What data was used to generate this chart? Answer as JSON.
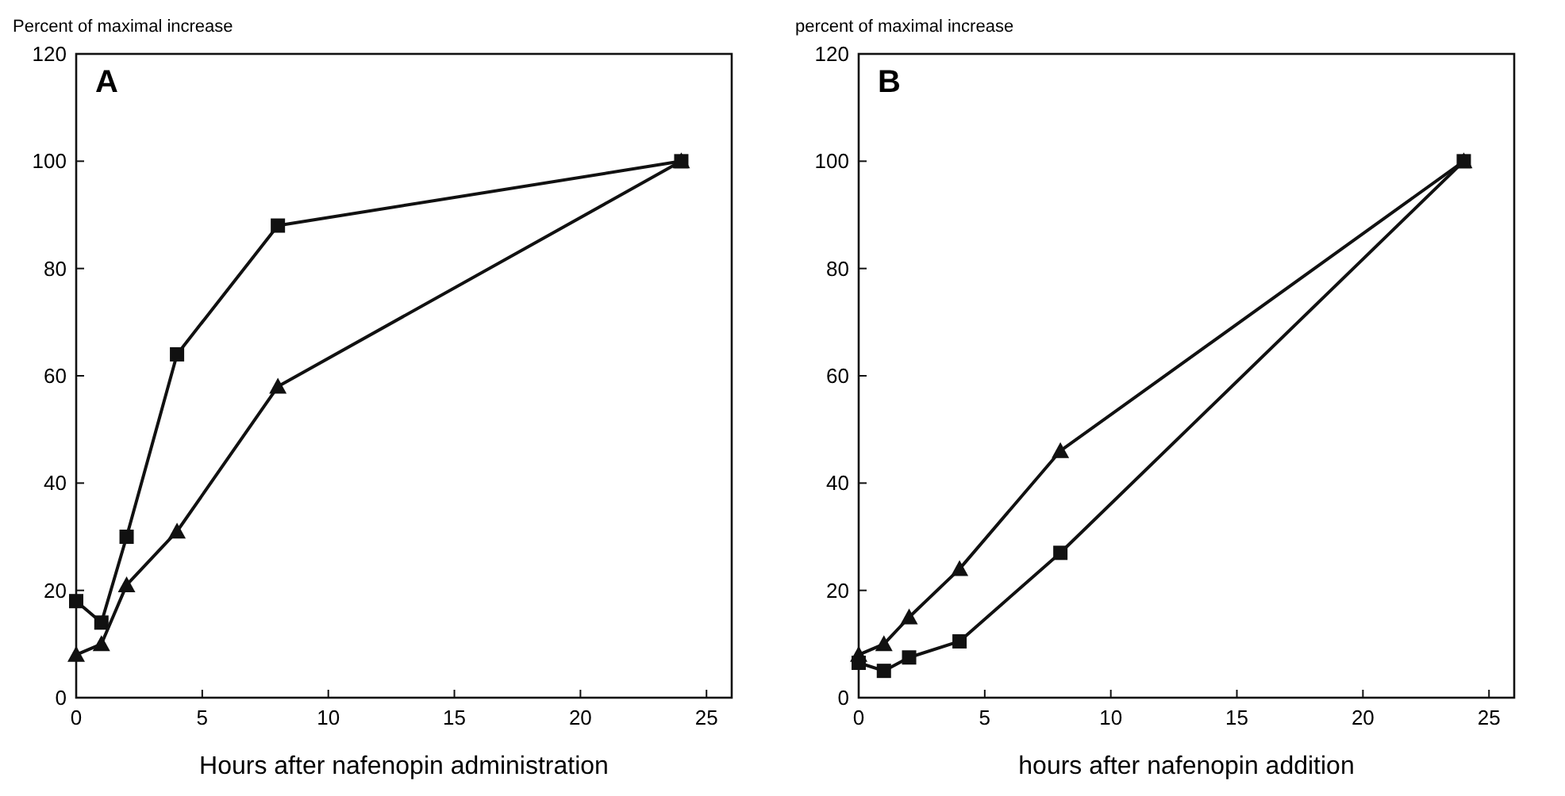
{
  "chart_data": [
    {
      "type": "line",
      "ylabel": "Percent of maximal increase",
      "xlabel": "Hours after nafenopin administration",
      "annotations": [
        "A"
      ],
      "xlim": [
        0,
        26
      ],
      "ylim": [
        0,
        120
      ],
      "xticks": [
        0,
        5,
        10,
        15,
        20,
        25
      ],
      "yticks": [
        0,
        20,
        40,
        60,
        80,
        100,
        120
      ],
      "grid": false,
      "line_style": "solid",
      "series": [
        {
          "color": "#111111",
          "marker": "square",
          "x": [
            0,
            1,
            2,
            4,
            8,
            24
          ],
          "values": [
            18,
            14,
            30,
            64,
            88,
            100
          ]
        },
        {
          "color": "#111111",
          "marker": "triangle",
          "x": [
            0,
            1,
            2,
            4,
            8,
            24
          ],
          "values": [
            8,
            10,
            21,
            31,
            58,
            100
          ]
        }
      ]
    },
    {
      "type": "line",
      "ylabel": "percent of maximal increase",
      "xlabel": "hours after nafenopin addition",
      "annotations": [
        "B"
      ],
      "xlim": [
        0,
        26
      ],
      "ylim": [
        0,
        120
      ],
      "xticks": [
        0,
        5,
        10,
        15,
        20,
        25
      ],
      "yticks": [
        0,
        20,
        40,
        60,
        80,
        100,
        120
      ],
      "grid": false,
      "line_style": "solid",
      "series": [
        {
          "color": "#111111",
          "marker": "triangle",
          "x": [
            0,
            1,
            2,
            4,
            8,
            24
          ],
          "values": [
            8,
            10,
            15,
            24,
            46,
            100
          ]
        },
        {
          "color": "#111111",
          "marker": "square",
          "x": [
            0,
            1,
            2,
            4,
            8,
            24
          ],
          "values": [
            6.5,
            5,
            7.5,
            10.5,
            27,
            100
          ]
        }
      ]
    }
  ]
}
